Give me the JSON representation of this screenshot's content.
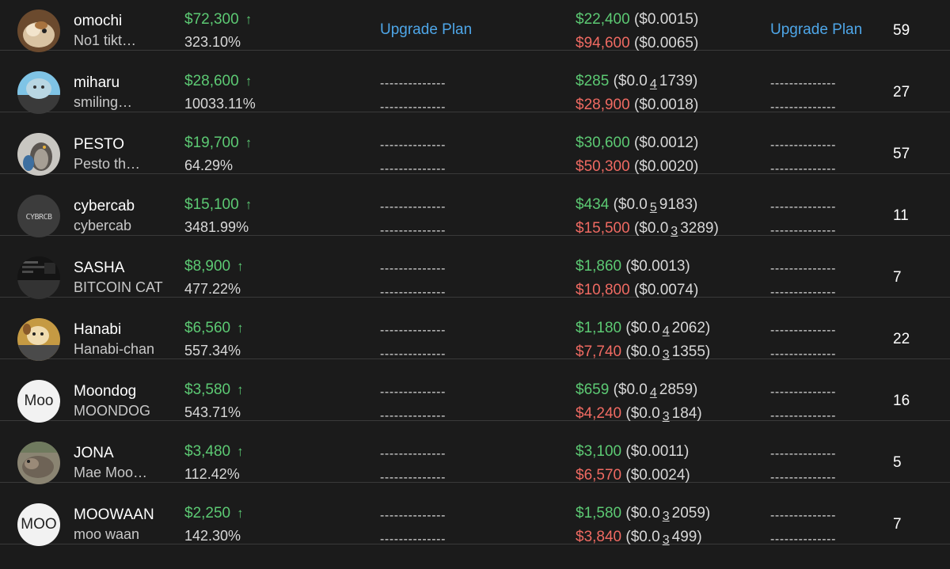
{
  "colors": {
    "background": "#1b1b1b",
    "positive": "#5cc973",
    "negative": "#ef6a62",
    "link": "#4ea6e8"
  },
  "rows": [
    {
      "name": "omochi",
      "subname": "No1 tikt…",
      "price": "$72,300",
      "change": "323.10%",
      "col3": {
        "type": "link",
        "label": "Upgrade Plan"
      },
      "buy": {
        "amount": "$22,400",
        "pre": "($0.0015)",
        "zeros": "",
        "post": ""
      },
      "sell": {
        "amount": "$94,600",
        "pre": "($0.0065)",
        "zeros": "",
        "post": ""
      },
      "col5": {
        "type": "link",
        "label": "Upgrade Plan"
      },
      "count": "59",
      "avatar": {
        "type": "image",
        "icon": "hamster-photo-avatar"
      }
    },
    {
      "name": "miharu",
      "subname": "smiling…",
      "price": "$28,600",
      "change": "10033.11%",
      "col3": {
        "type": "dash",
        "a": "--------------",
        "b": "--------------"
      },
      "buy": {
        "amount": "$285",
        "pre": "($0.0",
        "zeros": "4",
        "post": "1739)"
      },
      "sell": {
        "amount": "$28,900",
        "pre": "($0.0018)",
        "zeros": "",
        "post": ""
      },
      "col5": {
        "type": "dash",
        "a": "--------------",
        "b": "--------------"
      },
      "count": "27",
      "avatar": {
        "type": "image",
        "icon": "seal-photo-avatar"
      }
    },
    {
      "name": "PESTO",
      "subname": "Pesto th…",
      "price": "$19,700",
      "change": "64.29%",
      "col3": {
        "type": "dash",
        "a": "--------------",
        "b": "--------------"
      },
      "buy": {
        "amount": "$30,600",
        "pre": "($0.0012)",
        "zeros": "",
        "post": ""
      },
      "sell": {
        "amount": "$50,300",
        "pre": "($0.0020)",
        "zeros": "",
        "post": ""
      },
      "col5": {
        "type": "dash",
        "a": "--------------",
        "b": "--------------"
      },
      "count": "57",
      "avatar": {
        "type": "image",
        "icon": "penguin-photo-avatar"
      }
    },
    {
      "name": "cybercab",
      "subname": "cybercab",
      "price": "$15,100",
      "change": "3481.99%",
      "col3": {
        "type": "dash",
        "a": "--------------",
        "b": "--------------"
      },
      "buy": {
        "amount": "$434",
        "pre": "($0.0",
        "zeros": "5",
        "post": "9183)"
      },
      "sell": {
        "amount": "$15,500",
        "pre": "($0.0",
        "zeros": "3",
        "post": "3289)"
      },
      "col5": {
        "type": "dash",
        "a": "--------------",
        "b": "--------------"
      },
      "count": "11",
      "avatar": {
        "type": "image",
        "icon": "cybercab-logo-avatar"
      }
    },
    {
      "name": "SASHA",
      "subname": "BITCOIN CAT",
      "price": "$8,900",
      "change": "477.22%",
      "col3": {
        "type": "dash",
        "a": "--------------",
        "b": "--------------"
      },
      "buy": {
        "amount": "$1,860",
        "pre": "($0.0013)",
        "zeros": "",
        "post": ""
      },
      "sell": {
        "amount": "$10,800",
        "pre": "($0.0074)",
        "zeros": "",
        "post": ""
      },
      "col5": {
        "type": "dash",
        "a": "--------------",
        "b": "--------------"
      },
      "count": "7",
      "avatar": {
        "type": "image",
        "icon": "dark-screenshot-avatar"
      }
    },
    {
      "name": "Hanabi",
      "subname": "Hanabi-chan",
      "price": "$6,560",
      "change": "557.34%",
      "col3": {
        "type": "dash",
        "a": "--------------",
        "b": "--------------"
      },
      "buy": {
        "amount": "$1,180",
        "pre": "($0.0",
        "zeros": "4",
        "post": "2062)"
      },
      "sell": {
        "amount": "$7,740",
        "pre": "($0.0",
        "zeros": "3",
        "post": "1355)"
      },
      "col5": {
        "type": "dash",
        "a": "--------------",
        "b": "--------------"
      },
      "count": "22",
      "avatar": {
        "type": "image",
        "icon": "dog-photo-avatar"
      }
    },
    {
      "name": "Moondog",
      "subname": "MOONDOG",
      "price": "$3,580",
      "change": "543.71%",
      "col3": {
        "type": "dash",
        "a": "--------------",
        "b": "--------------"
      },
      "buy": {
        "amount": "$659",
        "pre": "($0.0",
        "zeros": "4",
        "post": "2859)"
      },
      "sell": {
        "amount": "$4,240",
        "pre": "($0.0",
        "zeros": "3",
        "post": "184)"
      },
      "col5": {
        "type": "dash",
        "a": "--------------",
        "b": "--------------"
      },
      "count": "16",
      "avatar": {
        "type": "text",
        "label": "Moo"
      }
    },
    {
      "name": "JONA",
      "subname": "Mae Moo…",
      "price": "$3,480",
      "change": "112.42%",
      "col3": {
        "type": "dash",
        "a": "--------------",
        "b": "--------------"
      },
      "buy": {
        "amount": "$3,100",
        "pre": "($0.0011)",
        "zeros": "",
        "post": ""
      },
      "sell": {
        "amount": "$6,570",
        "pre": "($0.0024)",
        "zeros": "",
        "post": ""
      },
      "col5": {
        "type": "dash",
        "a": "--------------",
        "b": "--------------"
      },
      "count": "5",
      "avatar": {
        "type": "image",
        "icon": "hippo-photo-avatar"
      }
    },
    {
      "name": "MOOWAAN",
      "subname": "moo waan",
      "price": "$2,250",
      "change": "142.30%",
      "col3": {
        "type": "dash",
        "a": "--------------",
        "b": "--------------"
      },
      "buy": {
        "amount": "$1,580",
        "pre": "($0.0",
        "zeros": "3",
        "post": "2059)"
      },
      "sell": {
        "amount": "$3,840",
        "pre": "($0.0",
        "zeros": "3",
        "post": "499)"
      },
      "col5": {
        "type": "dash",
        "a": "--------------",
        "b": "--------------"
      },
      "count": "7",
      "avatar": {
        "type": "text",
        "label": "MOO"
      }
    }
  ]
}
